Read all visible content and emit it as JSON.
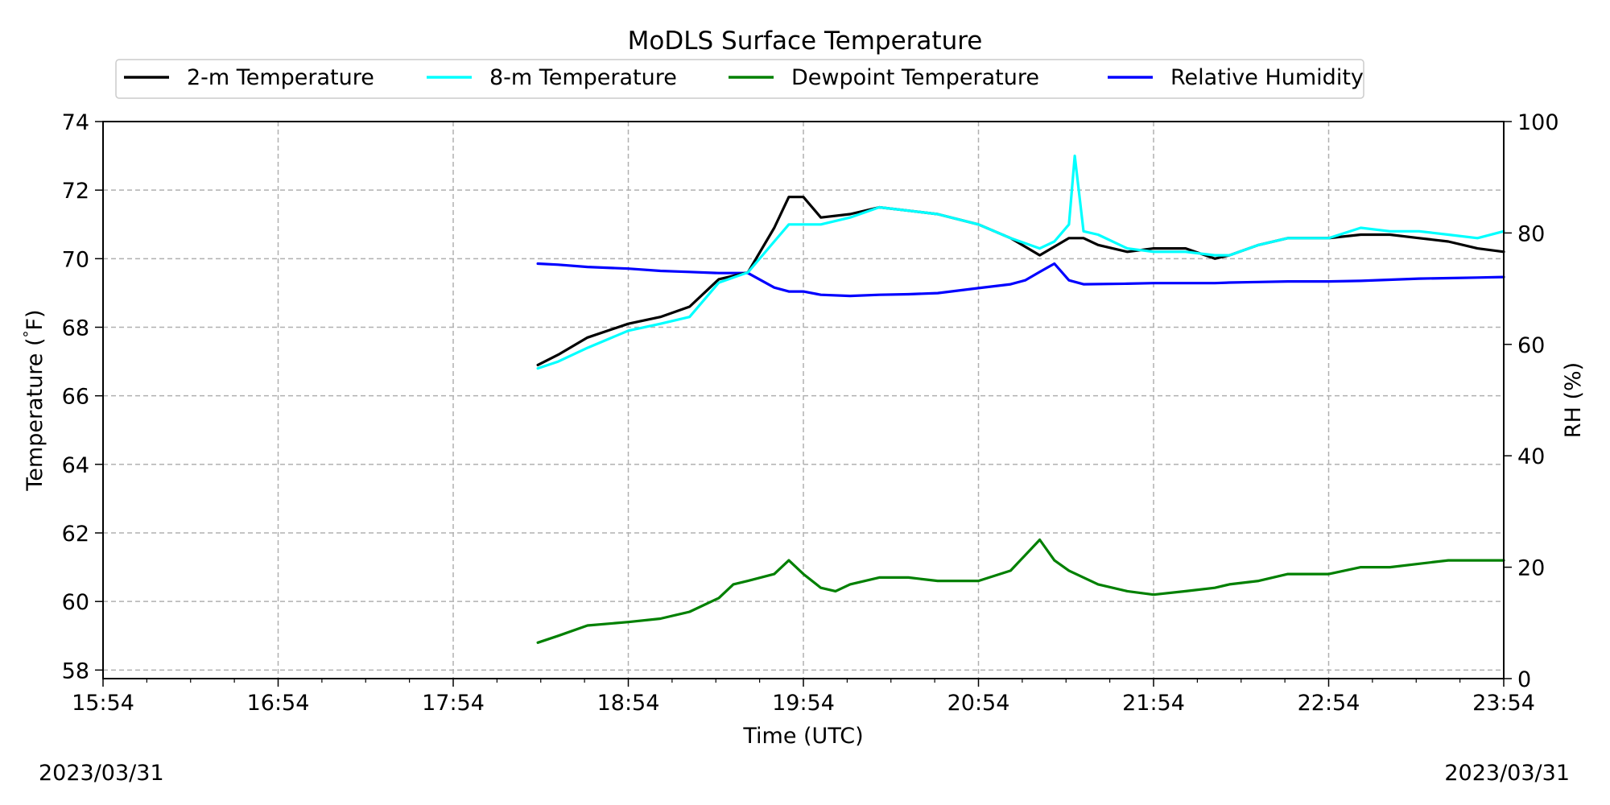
{
  "chart_data": {
    "type": "line",
    "title": "MoDLS Surface Temperature",
    "xlabel": "Time (UTC)",
    "ylabel": "Temperature ($^\\circ$F)",
    "ylabel_parts": [
      "Temperature (",
      "°",
      "F)"
    ],
    "ylabel_right": "RH (%)",
    "date_left": "2023/03/31",
    "date_right": "2023/03/31",
    "x_ticks": [
      "15:54",
      "16:54",
      "17:54",
      "18:54",
      "19:54",
      "20:54",
      "21:54",
      "22:54",
      "23:54"
    ],
    "x_range": [
      "15:54",
      "23:54"
    ],
    "ylim": [
      57.75,
      74
    ],
    "yticks": [
      58,
      60,
      62,
      64,
      66,
      68,
      70,
      72,
      74
    ],
    "ylim_right": [
      0,
      100
    ],
    "yticks_right": [
      0,
      20,
      40,
      60,
      80,
      100
    ],
    "grid": true,
    "legend_position": "top",
    "series": [
      {
        "name": "2-m Temperature",
        "color": "#000000",
        "axis": "left",
        "x": [
          "18:23",
          "18:30",
          "18:40",
          "18:54",
          "19:05",
          "19:15",
          "19:25",
          "19:35",
          "19:44",
          "19:49",
          "19:54",
          "20:00",
          "20:10",
          "20:20",
          "20:30",
          "20:40",
          "20:54",
          "21:05",
          "21:15",
          "21:25",
          "21:30",
          "21:35",
          "21:45",
          "21:54",
          "22:05",
          "22:15",
          "22:20",
          "22:30",
          "22:40",
          "22:54",
          "23:05",
          "23:15",
          "23:25",
          "23:35",
          "23:45",
          "23:54"
        ],
        "y": [
          66.9,
          67.2,
          67.7,
          68.1,
          68.3,
          68.6,
          69.4,
          69.6,
          70.9,
          71.8,
          71.8,
          71.2,
          71.3,
          71.5,
          71.4,
          71.3,
          71.0,
          70.6,
          70.1,
          70.6,
          70.6,
          70.4,
          70.2,
          70.3,
          70.3,
          70.0,
          70.1,
          70.4,
          70.6,
          70.6,
          70.7,
          70.7,
          70.6,
          70.5,
          70.3,
          70.2
        ]
      },
      {
        "name": "8-m Temperature",
        "color": "#00ffff",
        "axis": "left",
        "x": [
          "18:23",
          "18:30",
          "18:40",
          "18:54",
          "19:05",
          "19:15",
          "19:25",
          "19:35",
          "19:44",
          "19:49",
          "19:54",
          "20:00",
          "20:10",
          "20:20",
          "20:30",
          "20:40",
          "20:54",
          "21:05",
          "21:15",
          "21:20",
          "21:25",
          "21:27",
          "21:30",
          "21:35",
          "21:45",
          "21:54",
          "22:05",
          "22:15",
          "22:20",
          "22:30",
          "22:40",
          "22:54",
          "23:05",
          "23:15",
          "23:25",
          "23:35",
          "23:45",
          "23:54"
        ],
        "y": [
          66.8,
          67.0,
          67.4,
          67.9,
          68.1,
          68.3,
          69.3,
          69.6,
          70.5,
          71.0,
          71.0,
          71.0,
          71.2,
          71.5,
          71.4,
          71.3,
          71.0,
          70.6,
          70.3,
          70.5,
          71.0,
          73.0,
          70.8,
          70.7,
          70.3,
          70.2,
          70.2,
          70.1,
          70.1,
          70.4,
          70.6,
          70.6,
          70.9,
          70.8,
          70.8,
          70.7,
          70.6,
          70.8
        ]
      },
      {
        "name": "Dewpoint Temperature",
        "color": "#008000",
        "axis": "left",
        "x": [
          "18:23",
          "18:30",
          "18:40",
          "18:54",
          "19:05",
          "19:15",
          "19:25",
          "19:30",
          "19:35",
          "19:44",
          "19:49",
          "19:54",
          "20:00",
          "20:05",
          "20:10",
          "20:20",
          "20:30",
          "20:40",
          "20:54",
          "21:05",
          "21:15",
          "21:20",
          "21:25",
          "21:30",
          "21:35",
          "21:45",
          "21:54",
          "22:05",
          "22:15",
          "22:20",
          "22:30",
          "22:40",
          "22:54",
          "23:05",
          "23:15",
          "23:25",
          "23:35",
          "23:45",
          "23:54"
        ],
        "y": [
          58.8,
          59.0,
          59.3,
          59.4,
          59.5,
          59.7,
          60.1,
          60.5,
          60.6,
          60.8,
          61.2,
          60.8,
          60.4,
          60.3,
          60.5,
          60.7,
          60.7,
          60.6,
          60.6,
          60.9,
          61.8,
          61.2,
          60.9,
          60.7,
          60.5,
          60.3,
          60.2,
          60.3,
          60.4,
          60.5,
          60.6,
          60.8,
          60.8,
          61.0,
          61.0,
          61.1,
          61.2,
          61.2,
          61.2
        ]
      },
      {
        "name": "Relative Humidity",
        "color": "#0000ff",
        "axis": "right",
        "x": [
          "18:23",
          "18:30",
          "18:40",
          "18:54",
          "19:05",
          "19:15",
          "19:25",
          "19:35",
          "19:44",
          "19:49",
          "19:54",
          "20:00",
          "20:10",
          "20:20",
          "20:30",
          "20:40",
          "20:54",
          "21:05",
          "21:10",
          "21:15",
          "21:20",
          "21:25",
          "21:30",
          "21:45",
          "21:54",
          "22:05",
          "22:15",
          "22:20",
          "22:30",
          "22:40",
          "22:54",
          "23:05",
          "23:15",
          "23:25",
          "23:35",
          "23:45",
          "23:54"
        ],
        "y": [
          74.5,
          74.3,
          73.9,
          73.6,
          73.2,
          73.0,
          72.8,
          72.8,
          70.2,
          69.5,
          69.5,
          68.9,
          68.7,
          68.9,
          69.0,
          69.2,
          70.1,
          70.8,
          71.5,
          73.0,
          74.5,
          71.5,
          70.8,
          70.9,
          71.0,
          71.0,
          71.0,
          71.1,
          71.2,
          71.3,
          71.3,
          71.4,
          71.6,
          71.8,
          71.9,
          72.0,
          72.1
        ]
      }
    ]
  }
}
